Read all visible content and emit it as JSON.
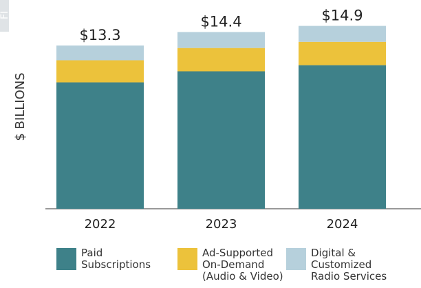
{
  "chart_data": {
    "type": "stacked_bar",
    "figure_tag": "FI",
    "ylabel": "$ BILLIONS",
    "categories": [
      "2022",
      "2023",
      "2024"
    ],
    "ylim": [
      0,
      16
    ],
    "series": [
      {
        "name": "Paid\nSubscriptions",
        "color": "#3e8189",
        "values": [
          10.3,
          11.2,
          11.7
        ]
      },
      {
        "name": "Ad-Supported\nOn-Demand\n(Audio & Video)",
        "color": "#ecc23b",
        "values": [
          1.8,
          1.9,
          1.9
        ]
      },
      {
        "name": "Digital &\nCustomized\nRadio Services",
        "color": "#b6d0dc",
        "values": [
          1.2,
          1.3,
          1.3
        ]
      }
    ],
    "totals": [
      13.3,
      14.4,
      14.9
    ],
    "total_labels": [
      "$13.3",
      "$14.4",
      "$14.9"
    ]
  }
}
